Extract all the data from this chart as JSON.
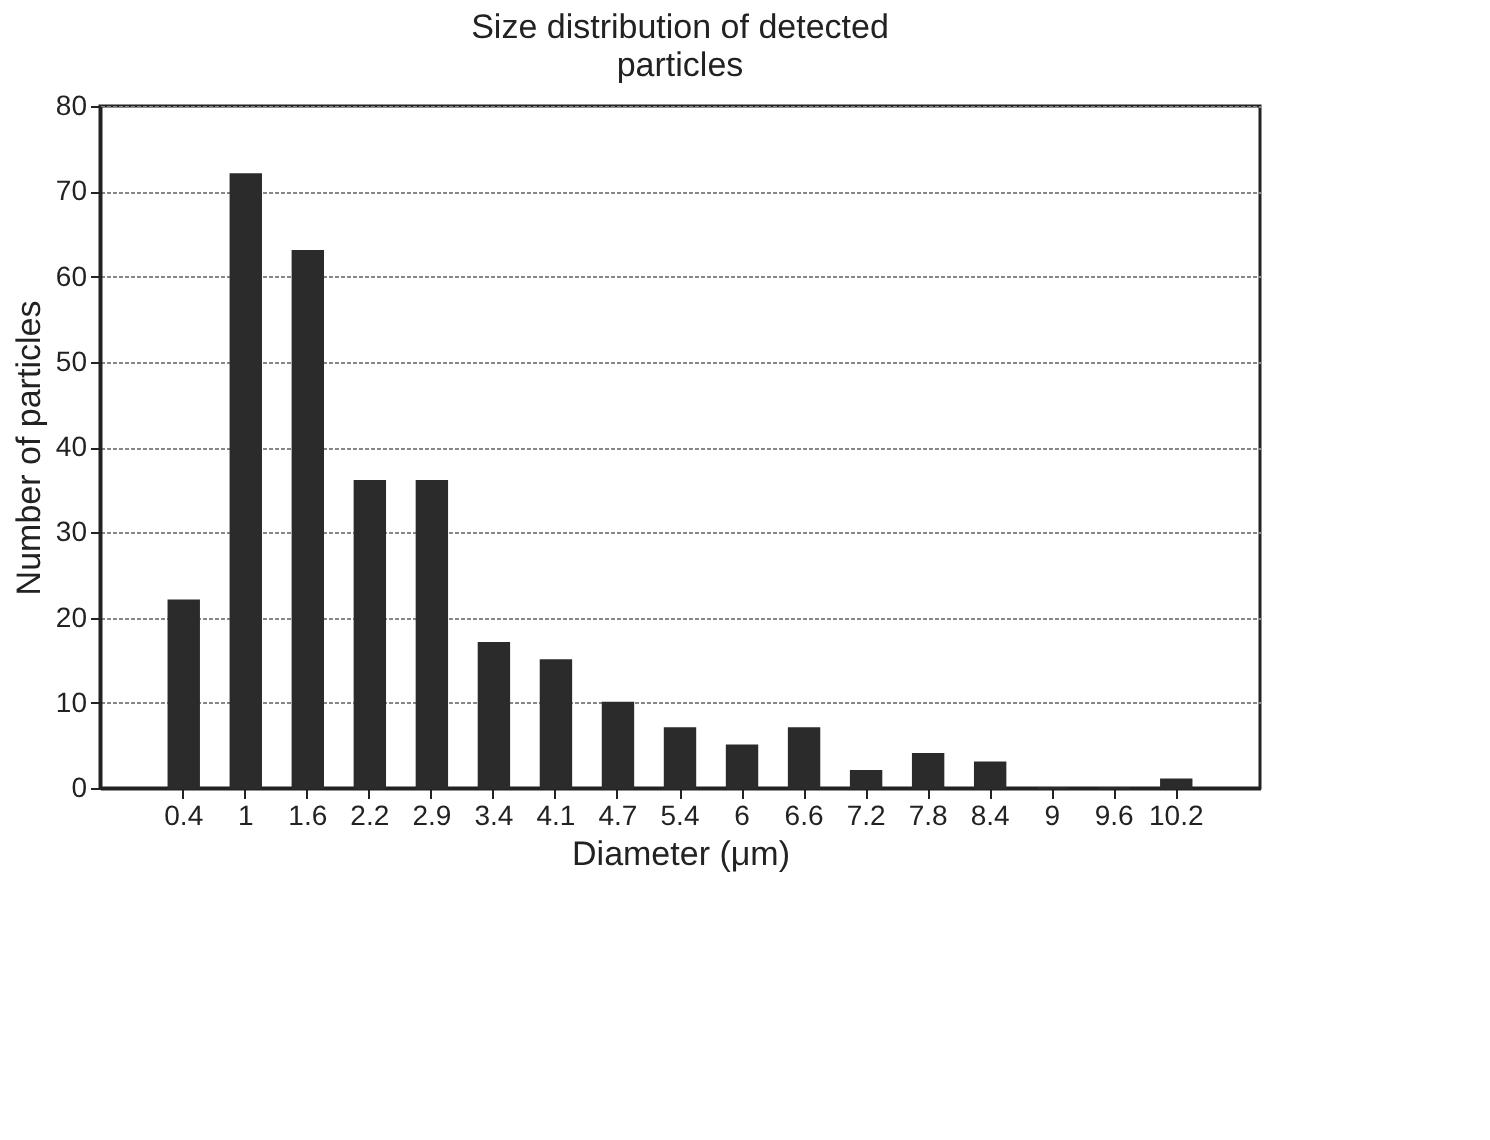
{
  "chart_data": {
    "type": "bar",
    "title": "Size distribution of detected particles",
    "xlabel": "Diameter (μm)",
    "ylabel": "Number of particles",
    "categories": [
      "0.4",
      "1",
      "1.6",
      "2.2",
      "2.9",
      "3.4",
      "4.1",
      "4.7",
      "5.4",
      "6",
      "6.6",
      "7.2",
      "7.8",
      "8.4",
      "9",
      "9.6",
      "10.2"
    ],
    "values": [
      22,
      72,
      63,
      36,
      36,
      17,
      15,
      10,
      7,
      5,
      7,
      2,
      4,
      3,
      0,
      0,
      1
    ],
    "color": "#2b2b2b",
    "ylim": [
      0,
      80
    ],
    "yticks": [
      0,
      10,
      20,
      30,
      40,
      50,
      60,
      70,
      80
    ],
    "grid": "y"
  }
}
